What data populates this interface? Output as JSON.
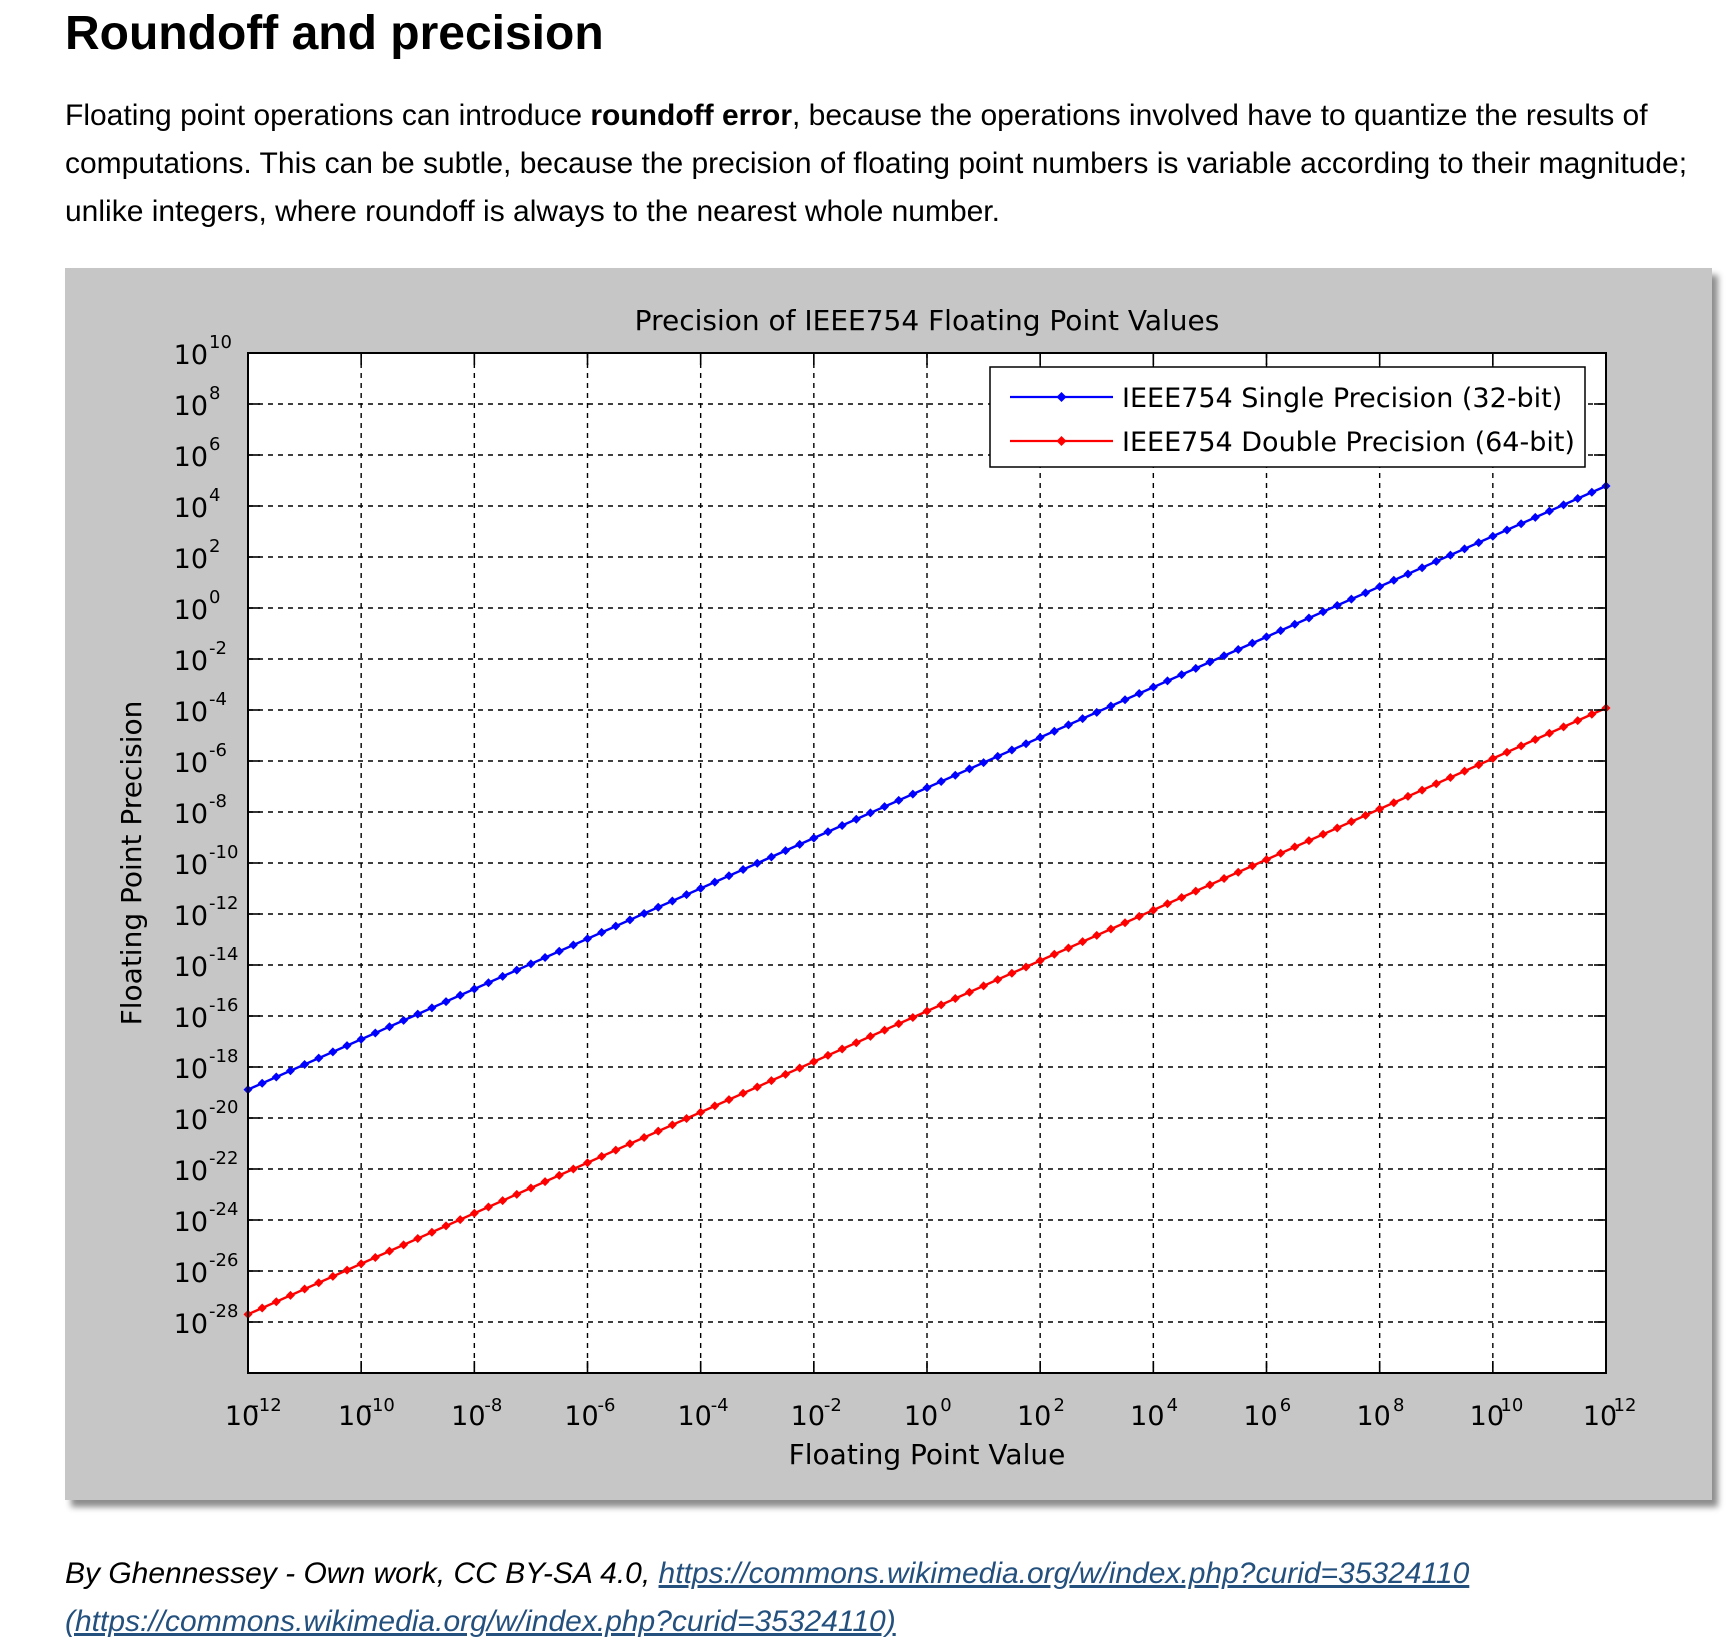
{
  "article": {
    "heading": "Roundoff and precision",
    "intro_before": "Floating point operations can introduce ",
    "intro_bold": "roundoff error",
    "intro_after": ", because the operations involved have to quantize the results of computations. This can be subtle, because the precision of floating point numbers is variable according to their magnitude; unlike integers, where roundoff is always to the nearest whole number."
  },
  "caption": {
    "text": "By Ghennessey - Own work, CC BY-SA 4.0, ",
    "link1": "https://commons.wikimedia.org/w/index.php?curid=35324110",
    "link2": "(https://commons.wikimedia.org/w/index.php?curid=35324110)"
  },
  "chart_data": {
    "type": "line",
    "title": "Precision of IEEE754 Floating Point Values",
    "xlabel": "Floating Point Value",
    "ylabel": "Floating Point Precision",
    "xscale": "log",
    "yscale": "log",
    "xlim": [
      1e-12,
      1000000000000.0
    ],
    "ylim": [
      1e-30,
      10000000000.0
    ],
    "x_tick_exponents": [
      -12,
      -10,
      -8,
      -6,
      -4,
      -2,
      0,
      2,
      4,
      6,
      8,
      10,
      12
    ],
    "y_tick_exponents": [
      10,
      8,
      6,
      4,
      2,
      0,
      -2,
      -4,
      -6,
      -8,
      -10,
      -12,
      -14,
      -16,
      -18,
      -20,
      -22,
      -24,
      -26,
      -28
    ],
    "tick_base": "10",
    "grid": true,
    "legend": "top-right",
    "series": [
      {
        "name": "IEEE754 Single Precision (32-bit)",
        "color": "#0000ff",
        "marker": "diamond",
        "x": [
          1e-12,
          1000000000000.0
        ],
        "y": [
          1.3e-19,
          61000.0
        ]
      },
      {
        "name": "IEEE754 Double Precision (64-bit)",
        "color": "#ff0000",
        "marker": "diamond",
        "x": [
          1e-12,
          1000000000000.0
        ],
        "y": [
          2e-28,
          0.00012
        ]
      }
    ]
  },
  "colors": {
    "figure_background": "#c6c6c6",
    "plot_background": "#ffffff",
    "link": "#24507e"
  }
}
